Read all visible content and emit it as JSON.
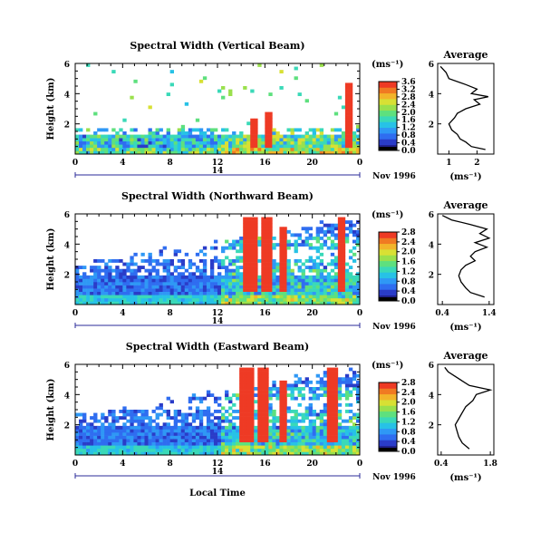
{
  "figure": {
    "x_axis_label": "Local Time",
    "date_label": "Nov 1996",
    "day_marker": "14",
    "colorbar_unit": "(ms⁻¹)",
    "colormap": [
      "#20208c",
      "#2a3cc8",
      "#2f6df0",
      "#2f98f5",
      "#27c2e6",
      "#3ad9b8",
      "#5ee07e",
      "#9ae04c",
      "#d8e034",
      "#f2b42a",
      "#f07a22",
      "#ee3a24"
    ]
  },
  "chart_data": [
    {
      "type": "heatmap",
      "title": "Spectral Width (Vertical Beam)",
      "xlabel": "",
      "ylabel": "Height (km)",
      "x_ticks": [
        "0",
        "4",
        "8",
        "12",
        "16",
        "20",
        "0"
      ],
      "y_ticks": [
        "2",
        "4",
        "6"
      ],
      "xlim": [
        0,
        24
      ],
      "ylim": [
        0,
        6
      ],
      "colorbar": {
        "unit": "(ms⁻¹)",
        "ticks": [
          "0.0",
          "0.4",
          "0.8",
          "1.2",
          "1.6",
          "2.0",
          "2.4",
          "2.8",
          "3.2",
          "3.6"
        ],
        "range": [
          0,
          3.6
        ]
      },
      "average_profile": {
        "title": "Average",
        "xlabel": "(ms⁻¹)",
        "x_ticks": [
          "1",
          "2"
        ],
        "y_ticks": [
          "2",
          "4",
          "6"
        ],
        "xlim": [
          0.6,
          2.6
        ],
        "ylim": [
          0,
          6
        ],
        "height": [
          0.3,
          0.5,
          0.8,
          1.0,
          1.3,
          1.6,
          2.0,
          2.4,
          2.7,
          3.0,
          3.3,
          3.6,
          3.8,
          4.0,
          4.3,
          4.6,
          5.0,
          5.4,
          5.8
        ],
        "value": [
          2.3,
          1.8,
          1.6,
          1.4,
          1.3,
          1.1,
          1.0,
          1.2,
          1.3,
          1.6,
          2.1,
          1.9,
          2.4,
          1.8,
          2.0,
          1.6,
          1.0,
          0.9,
          0.7
        ]
      }
    },
    {
      "type": "heatmap",
      "title": "Spectral Width (Northward Beam)",
      "xlabel": "",
      "ylabel": "Height (km)",
      "x_ticks": [
        "0",
        "4",
        "8",
        "12",
        "16",
        "20",
        "0"
      ],
      "y_ticks": [
        "2",
        "4",
        "6"
      ],
      "xlim": [
        0,
        24
      ],
      "ylim": [
        0,
        6
      ],
      "colorbar": {
        "unit": "(ms⁻¹)",
        "ticks": [
          "0.0",
          "0.4",
          "0.8",
          "1.2",
          "1.6",
          "2.0",
          "2.4",
          "2.8"
        ],
        "range": [
          0,
          2.8
        ]
      },
      "average_profile": {
        "title": "Average",
        "xlabel": "(ms⁻¹)",
        "x_ticks": [
          "0.4",
          "1.4"
        ],
        "y_ticks": [
          "2",
          "4",
          "6"
        ],
        "xlim": [
          0.3,
          1.5
        ],
        "ylim": [
          0,
          6
        ],
        "height": [
          0.5,
          0.8,
          1.1,
          1.5,
          1.9,
          2.3,
          2.6,
          2.9,
          3.2,
          3.5,
          3.8,
          4.1,
          4.4,
          4.7,
          5.0,
          5.3,
          5.6,
          5.9
        ],
        "value": [
          1.3,
          1.0,
          0.9,
          0.8,
          0.75,
          0.8,
          0.9,
          1.1,
          1.0,
          1.1,
          1.35,
          1.1,
          1.4,
          1.2,
          1.35,
          1.0,
          0.6,
          0.4
        ]
      }
    },
    {
      "type": "heatmap",
      "title": "Spectral Width (Eastward Beam)",
      "xlabel": "Local Time",
      "ylabel": "Height (km)",
      "x_ticks": [
        "0",
        "4",
        "8",
        "12",
        "16",
        "20",
        "0"
      ],
      "y_ticks": [
        "2",
        "4",
        "6"
      ],
      "xlim": [
        0,
        24
      ],
      "ylim": [
        0,
        6
      ],
      "colorbar": {
        "unit": "(ms⁻¹)",
        "ticks": [
          "0.0",
          "0.4",
          "0.8",
          "1.2",
          "1.6",
          "2.0",
          "2.4",
          "2.8"
        ],
        "range": [
          0,
          2.8
        ]
      },
      "average_profile": {
        "title": "Average",
        "xlabel": "(ms⁻¹)",
        "x_ticks": [
          "0.4",
          "1.8"
        ],
        "y_ticks": [
          "2",
          "4",
          "6"
        ],
        "xlim": [
          0.3,
          1.9
        ],
        "ylim": [
          0,
          6
        ],
        "height": [
          0.4,
          0.8,
          1.2,
          1.6,
          2.0,
          2.4,
          2.8,
          3.2,
          3.6,
          4.0,
          4.3,
          4.6,
          4.9,
          5.2,
          5.5,
          5.8
        ],
        "value": [
          1.2,
          1.0,
          0.9,
          0.85,
          0.8,
          0.9,
          1.0,
          1.1,
          1.3,
          1.4,
          1.8,
          1.2,
          1.0,
          0.8,
          0.6,
          0.5
        ]
      }
    }
  ]
}
